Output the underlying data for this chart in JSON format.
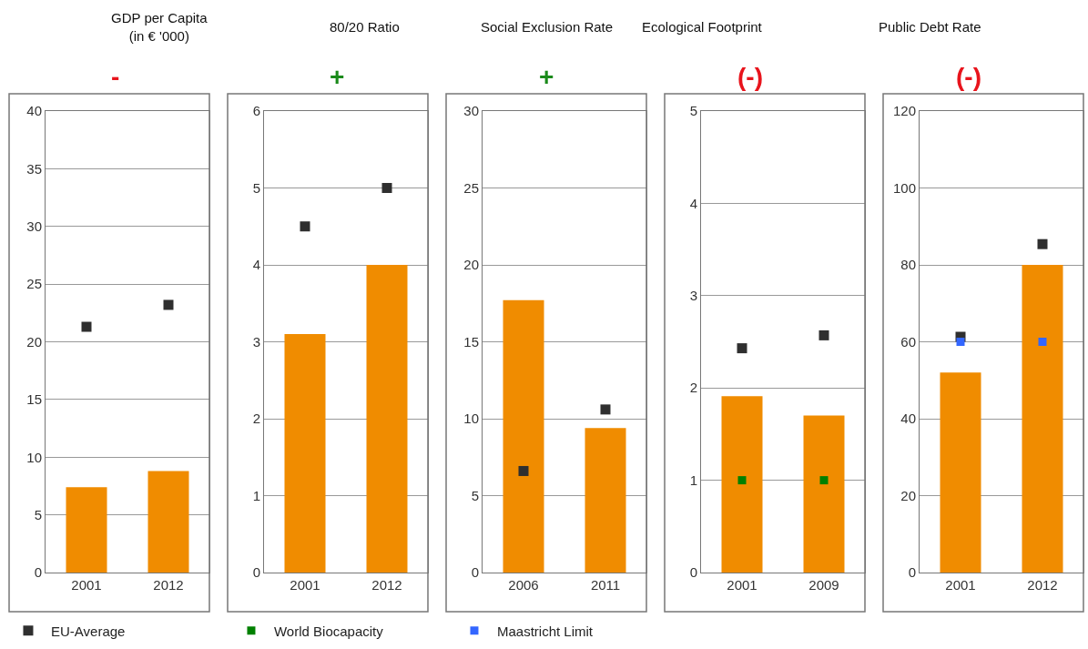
{
  "chart_data": [
    {
      "type": "bar",
      "title": "GDP per Capita\n(in € '000)",
      "annotations": [
        "-"
      ],
      "categories": [
        "2001",
        "2012"
      ],
      "ylim": [
        0,
        40
      ],
      "yticks": [
        0,
        5,
        10,
        15,
        20,
        25,
        30,
        35,
        40
      ],
      "grid": "y",
      "legend": "bottom",
      "series": [
        {
          "color": "#f08c00",
          "values": [
            7.4,
            8.8
          ]
        },
        {
          "type": "scatter",
          "marker": "square",
          "name": "EU-Average",
          "color": "#2f2f2f",
          "values": [
            21.3,
            23.2
          ]
        }
      ]
    },
    {
      "type": "bar",
      "title": "80/20 Ratio",
      "annotations": [
        "+"
      ],
      "categories": [
        "2001",
        "2012"
      ],
      "ylim": [
        0,
        6
      ],
      "yticks": [
        0,
        1,
        2,
        3,
        4,
        5,
        6
      ],
      "grid": "y",
      "series": [
        {
          "color": "#f08c00",
          "values": [
            3.1,
            4.0
          ]
        },
        {
          "type": "scatter",
          "marker": "square",
          "color": "#2f2f2f",
          "values": [
            4.5,
            5.0
          ]
        }
      ]
    },
    {
      "type": "bar",
      "title": "Social Exclusion Rate",
      "annotations": [
        "+"
      ],
      "categories": [
        "2006",
        "2011"
      ],
      "ylim": [
        0,
        30
      ],
      "yticks": [
        0,
        5,
        10,
        15,
        20,
        25,
        30
      ],
      "grid": "y",
      "series": [
        {
          "color": "#f08c00",
          "values": [
            17.7,
            9.4
          ]
        },
        {
          "type": "scatter",
          "marker": "square",
          "color": "#2f2f2f",
          "values": [
            6.6,
            10.6
          ]
        }
      ]
    },
    {
      "type": "bar",
      "title": "Ecological Footprint",
      "annotations": [
        "(-)"
      ],
      "categories": [
        "2001",
        "2009"
      ],
      "ylim": [
        0,
        5
      ],
      "yticks": [
        0,
        1,
        2,
        3,
        4,
        5
      ],
      "grid": "y",
      "legend": "bottom",
      "series": [
        {
          "color": "#f08c00",
          "values": [
            1.91,
            1.7
          ]
        },
        {
          "type": "scatter",
          "marker": "square",
          "color": "#2f2f2f",
          "values": [
            2.43,
            2.57
          ]
        },
        {
          "type": "scatter",
          "marker": "square",
          "name": "World Biocapacity",
          "color": "#008000",
          "values": [
            1.0,
            1.0
          ]
        }
      ]
    },
    {
      "type": "bar",
      "title": "Public Debt Rate",
      "annotations": [
        "(-)"
      ],
      "categories": [
        "2001",
        "2012"
      ],
      "ylim": [
        0,
        120
      ],
      "yticks": [
        0,
        20,
        40,
        60,
        80,
        100,
        120
      ],
      "grid": "y",
      "legend": "bottom",
      "series": [
        {
          "color": "#f08c00",
          "values": [
            52,
            80
          ]
        },
        {
          "type": "scatter",
          "marker": "square",
          "color": "#2f2f2f",
          "values": [
            61.3,
            85.4
          ]
        },
        {
          "type": "scatter",
          "marker": "square",
          "name": "Maastricht Limit",
          "color": "#3366ff",
          "values": [
            60,
            60
          ]
        }
      ]
    }
  ]
}
